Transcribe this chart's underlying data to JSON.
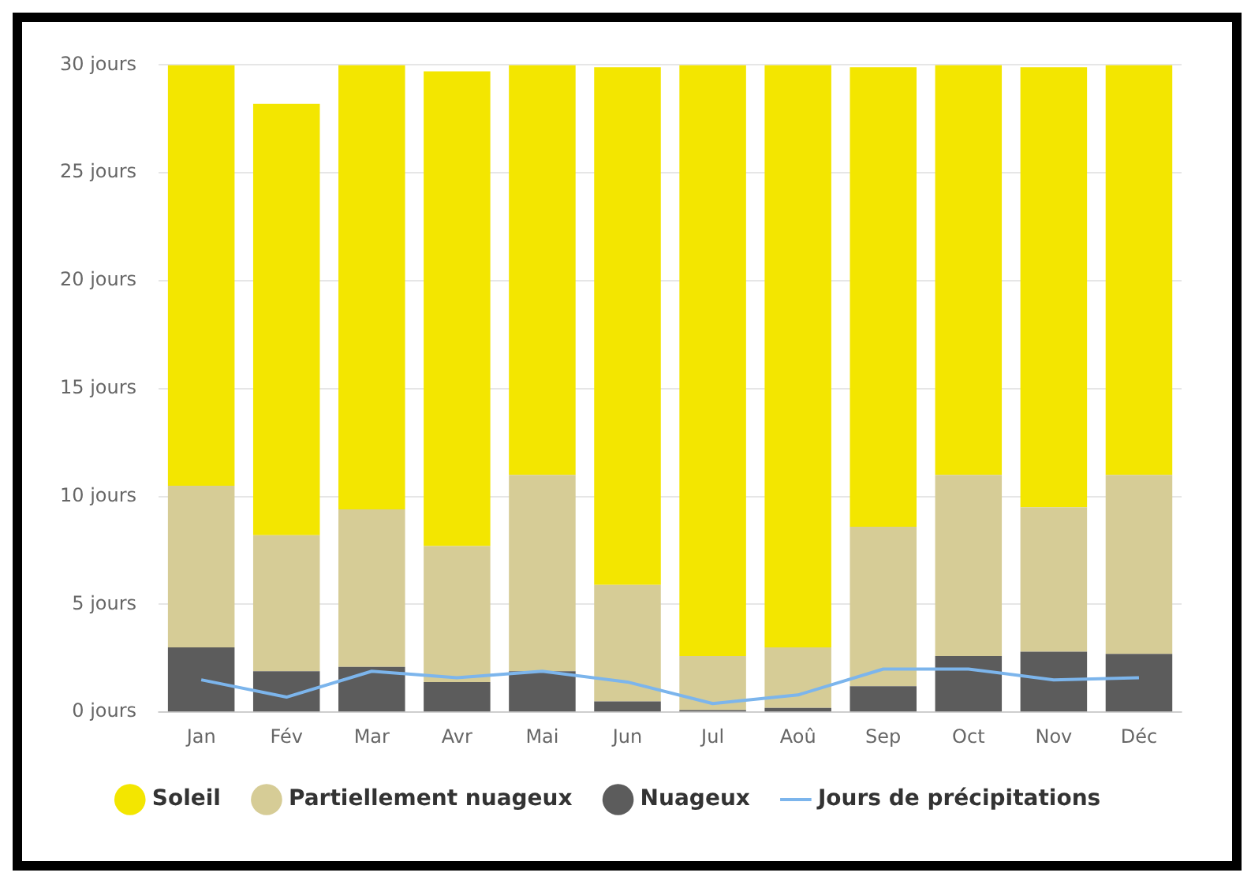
{
  "chart_data": {
    "type": "bar",
    "stacked": true,
    "categories": [
      "Jan",
      "Fév",
      "Mar",
      "Avr",
      "Mai",
      "Jun",
      "Jul",
      "Aoû",
      "Sep",
      "Oct",
      "Nov",
      "Déc"
    ],
    "series": [
      {
        "name": "Nuageux",
        "color": "#5c5c5c",
        "values": [
          3.0,
          1.9,
          2.1,
          1.4,
          1.9,
          0.5,
          0.1,
          0.2,
          1.2,
          2.6,
          2.8,
          2.7
        ]
      },
      {
        "name": "Partiellement nuageux",
        "color": "#d6cc96",
        "values": [
          7.5,
          6.3,
          7.3,
          6.3,
          9.1,
          5.4,
          2.5,
          2.8,
          7.4,
          8.4,
          6.7,
          8.3
        ]
      },
      {
        "name": "Soleil",
        "color": "#f3e600",
        "values": [
          19.5,
          20.0,
          20.6,
          22.0,
          19.0,
          24.0,
          27.4,
          27.0,
          21.3,
          19.0,
          20.4,
          19.0
        ]
      },
      {
        "name": "Jours de précipitations",
        "type": "line",
        "color": "#7cb5ec",
        "marker": "none",
        "values": [
          1.5,
          0.7,
          1.9,
          1.6,
          1.9,
          1.4,
          0.4,
          0.8,
          2.0,
          2.0,
          1.5,
          1.6
        ]
      }
    ],
    "ylim": [
      0,
      30
    ],
    "yticks": [
      {
        "value": 0,
        "label": "0 jours"
      },
      {
        "value": 5,
        "label": "5 jours"
      },
      {
        "value": 10,
        "label": "10 jours"
      },
      {
        "value": 15,
        "label": "15 jours"
      },
      {
        "value": 20,
        "label": "20 jours"
      },
      {
        "value": 25,
        "label": "25 jours"
      },
      {
        "value": 30,
        "label": "30 jours"
      }
    ],
    "grid": "y",
    "legend": "bottom"
  }
}
